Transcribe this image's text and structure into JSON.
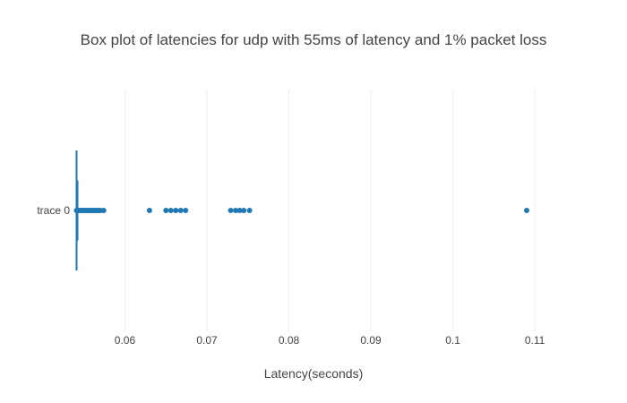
{
  "chart_data": {
    "type": "box",
    "orientation": "horizontal",
    "title": "Box plot of latencies for udp with 55ms of latency and 1% packet loss",
    "xlabel": "Latency(seconds)",
    "ylabel": "",
    "xlim": [
      0.0535,
      0.1125
    ],
    "xticks": [
      0.06,
      0.07,
      0.08,
      0.09,
      0.1,
      0.11
    ],
    "xtick_labels": [
      "0.06",
      "0.07",
      "0.08",
      "0.09",
      "0.1",
      "0.11"
    ],
    "grid": true,
    "series": [
      {
        "name": "trace 0",
        "color": "#1f77b4",
        "min": 0.0541,
        "q1": 0.0541,
        "median": 0.0541,
        "q3": 0.0541,
        "max": 0.0541,
        "outliers": [
          0.0541,
          0.0544,
          0.0546,
          0.0548,
          0.055,
          0.0552,
          0.0554,
          0.0556,
          0.0558,
          0.056,
          0.0562,
          0.0564,
          0.0566,
          0.0568,
          0.057,
          0.0574,
          0.063,
          0.065,
          0.0656,
          0.0662,
          0.0668,
          0.0674,
          0.0729,
          0.0735,
          0.074,
          0.0745,
          0.0752,
          0.109
        ]
      }
    ]
  }
}
